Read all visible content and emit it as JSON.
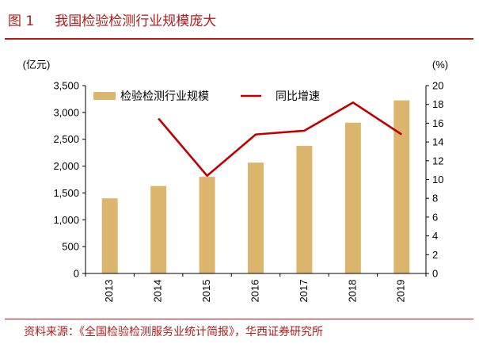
{
  "figure": {
    "label": "图 1",
    "title": "我国检验检测行业规模庞大",
    "source": "资料来源：《全国检验检测服务业统计简报》，华西证券研究所"
  },
  "chart_data": {
    "type": "bar",
    "categories": [
      "2013",
      "2014",
      "2015",
      "2016",
      "2017",
      "2018",
      "2019"
    ],
    "series": [
      {
        "name": "检验检测行业规模",
        "type": "bar",
        "axis": "left",
        "color": "#dcb56f",
        "values": [
          1400,
          1630,
          1800,
          2065,
          2377,
          2810,
          3225
        ]
      },
      {
        "name": "同比增速",
        "type": "line",
        "axis": "right",
        "color": "#c00000",
        "values": [
          null,
          16.5,
          10.4,
          14.8,
          15.2,
          18.2,
          14.8
        ]
      }
    ],
    "y_left": {
      "unit": "(亿元)",
      "ylim": [
        0,
        3500
      ],
      "ticks": [
        "0",
        "500",
        "1,000",
        "1,500",
        "2,000",
        "2,500",
        "3,000",
        "3,500"
      ]
    },
    "y_right": {
      "unit": "(%)",
      "ylim": [
        0,
        20
      ],
      "ticks": [
        "0",
        "2",
        "4",
        "6",
        "8",
        "10",
        "12",
        "14",
        "16",
        "18",
        "20"
      ]
    },
    "legend_position": "top-center",
    "grid": false
  }
}
